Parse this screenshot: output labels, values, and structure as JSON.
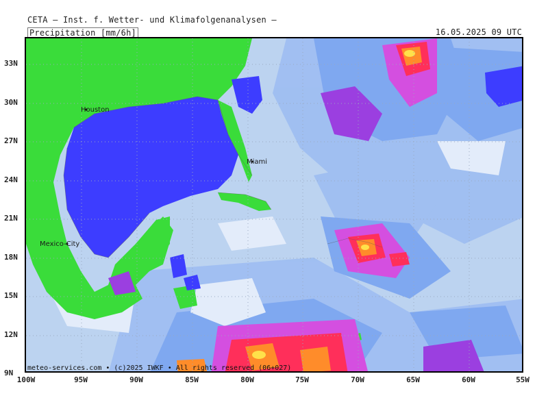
{
  "header": {
    "title": "CETA – Inst. f. Wetter- und Klimafolgenanalysen –",
    "parameter": "Precipitation [mm/6h]",
    "valid_time": "16.05.2025 09 UTC"
  },
  "axes": {
    "lat_labels": [
      "33N",
      "30N",
      "27N",
      "24N",
      "21N",
      "18N",
      "15N",
      "12N",
      "9N"
    ],
    "lon_labels": [
      "100W",
      "95W",
      "90W",
      "85W",
      "80W",
      "75W",
      "70W",
      "65W",
      "60W",
      "55W"
    ]
  },
  "cities": {
    "houston": "Houston",
    "miami": "Miami",
    "mexico_city": "Mexico-City"
  },
  "footer": {
    "credit": "meteo-services.com • (c)2025 IWKF • All rights reserved (06+027)"
  },
  "colors": {
    "ocean_light": "#bcd3f0",
    "ocean_white": "#e3ecfa",
    "medium_blue": "#7fa8f0",
    "deep_blue": "#3d3dff",
    "dry_land_green": "#3adc3a",
    "magenta": "#d44fe0",
    "purple": "#9b3fe0",
    "red": "#ff2f5a",
    "orange": "#ff8c2a",
    "yellow": "#ffe14a",
    "grid_dots": "#9aa8c0"
  }
}
